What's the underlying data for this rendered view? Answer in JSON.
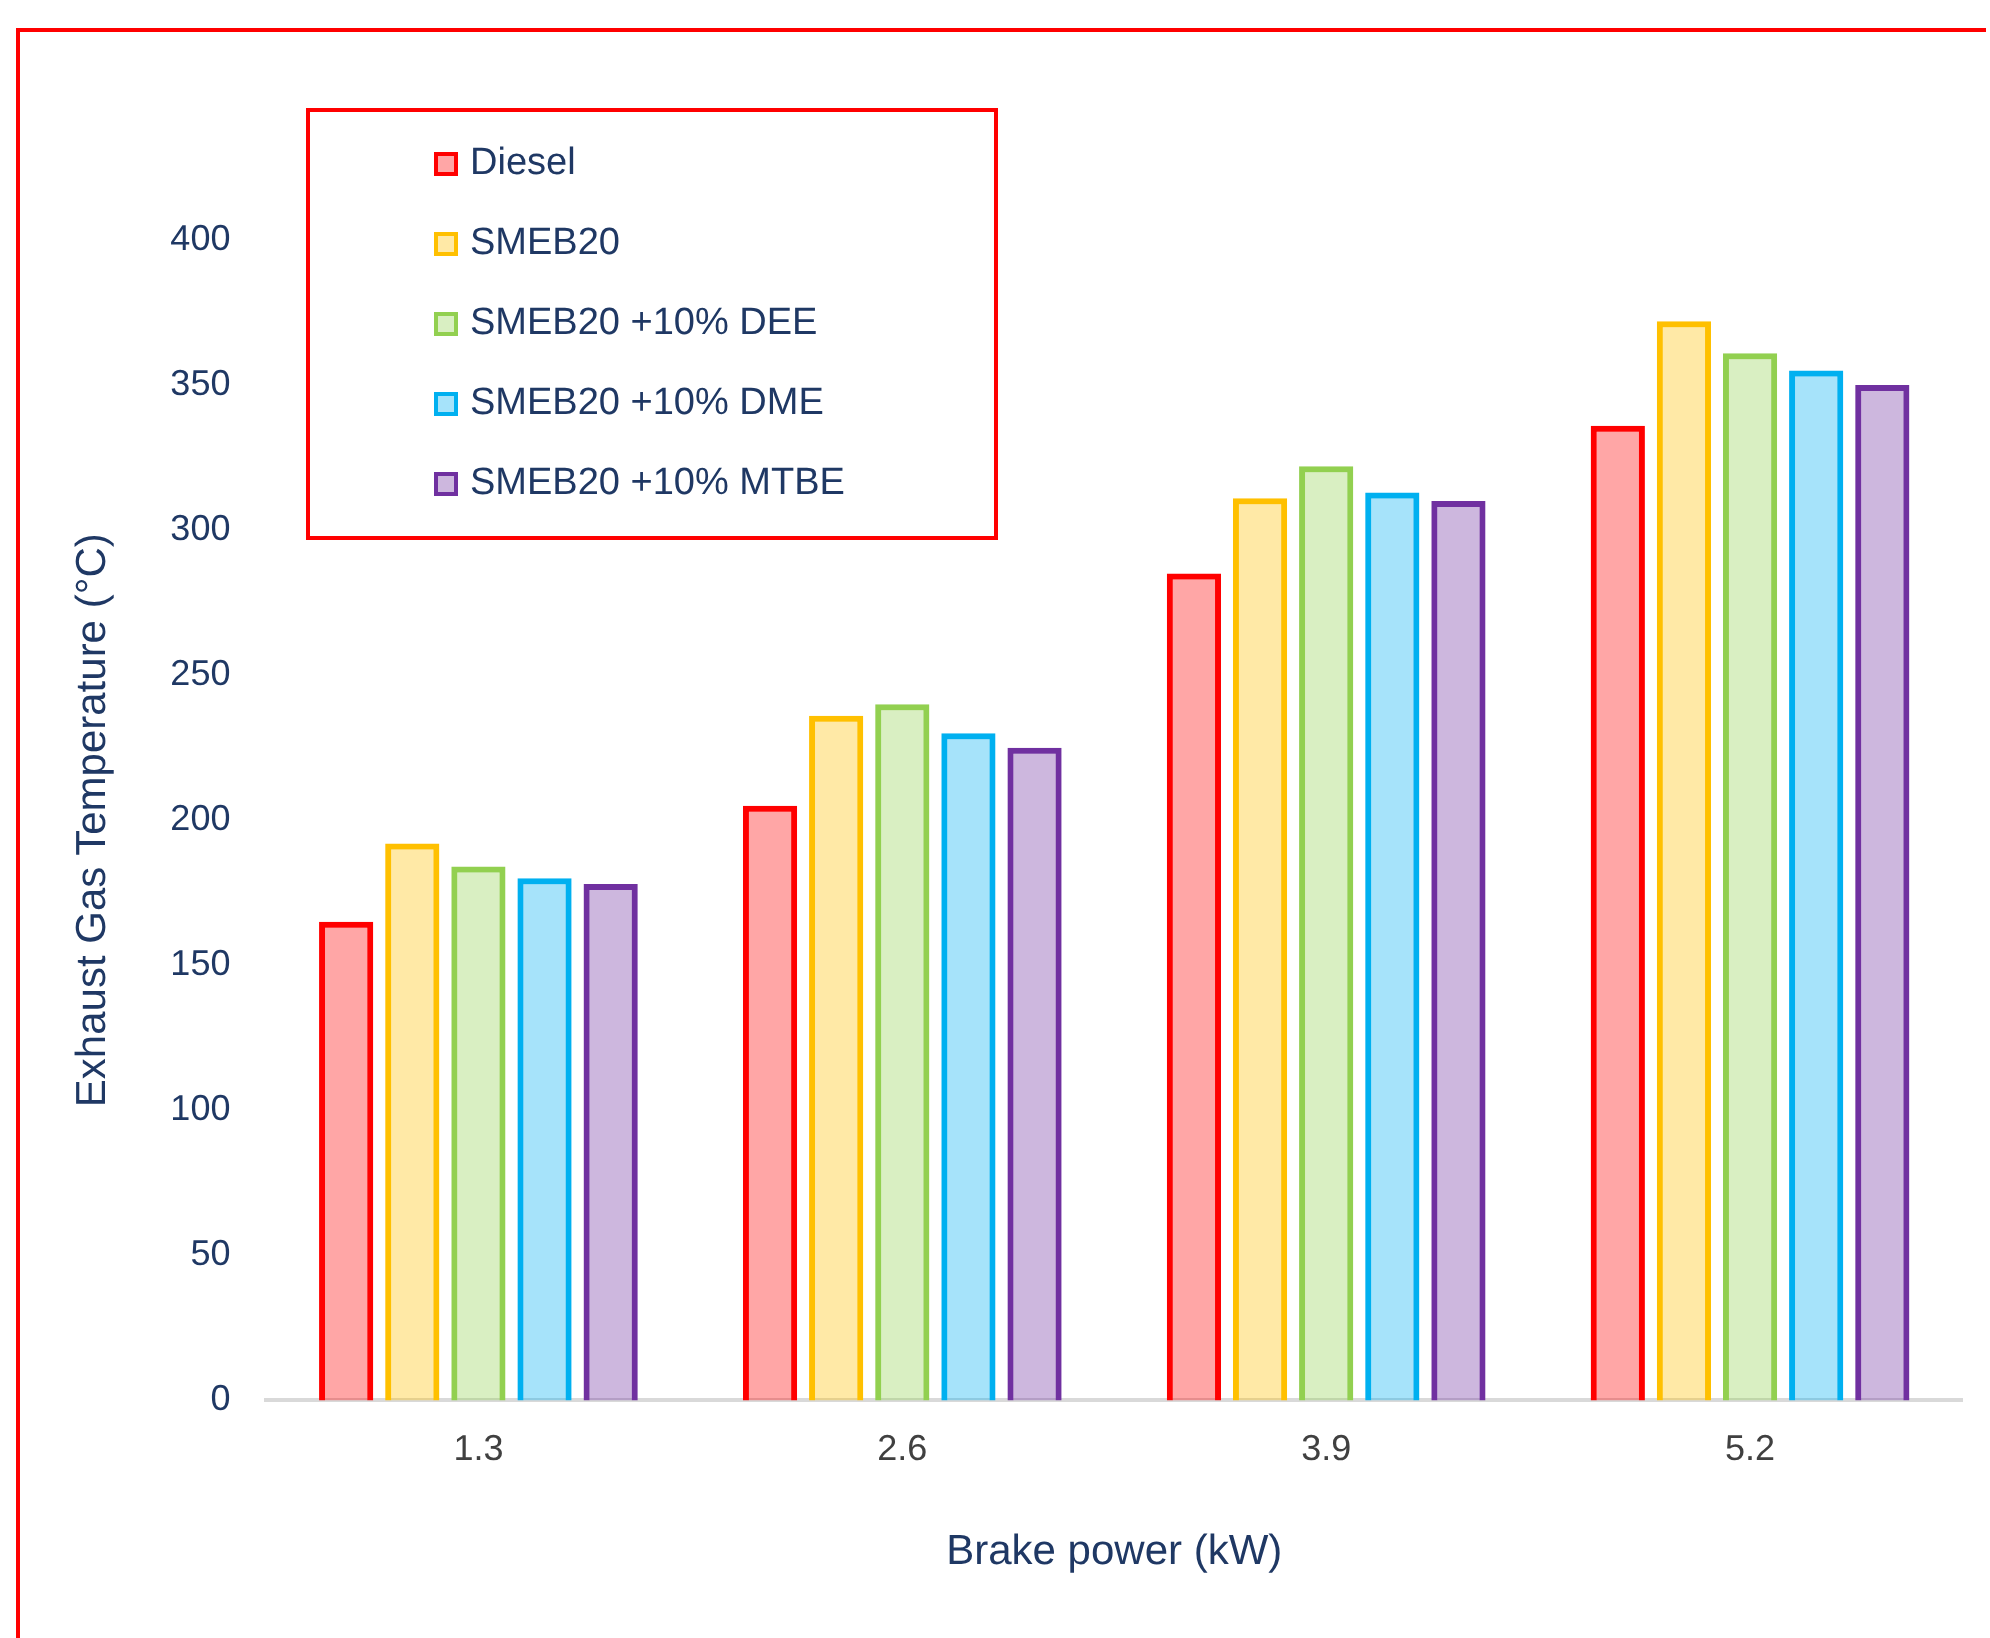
{
  "chart_data": {
    "type": "bar",
    "xlabel": "Brake power (kW)",
    "ylabel": "Exhaust Gas Temperature (°C)",
    "categories": [
      "1.3",
      "2.6",
      "3.9",
      "5.2"
    ],
    "series": [
      {
        "name": "Diesel",
        "color": "#ff0000",
        "values": [
          165,
          205,
          285,
          336
        ]
      },
      {
        "name": "SMEB20",
        "color": "#ffc000",
        "values": [
          192,
          236,
          311,
          372
        ]
      },
      {
        "name": "SMEB20 +10% DEE",
        "color": "#92d050",
        "values": [
          184,
          240,
          322,
          361
        ]
      },
      {
        "name": "SMEB20 +10% DME",
        "color": "#00b0f0",
        "values": [
          180,
          230,
          313,
          355
        ]
      },
      {
        "name": "SMEB20 +10% MTBE",
        "color": "#7030a0",
        "values": [
          178,
          225,
          310,
          350
        ]
      }
    ],
    "ylim": [
      0,
      400
    ],
    "yticks": [
      0,
      50,
      100,
      150,
      200,
      250,
      300,
      350,
      400
    ],
    "grid": false,
    "legend": "top left"
  }
}
